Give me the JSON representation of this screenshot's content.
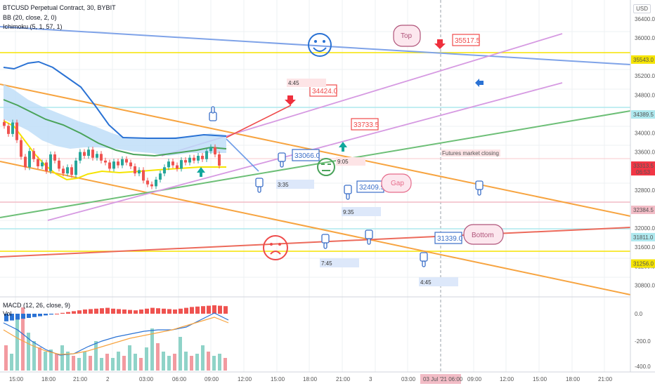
{
  "legend": {
    "symbol": "BTCUSD Perpetual Contract, 30, BYBIT",
    "bb": "BB (20, close, 2, 0)",
    "ichimoku": "Ichimoku (5, 1, 57, 1)",
    "macd": "MACD (12, 26, close, 9)",
    "vol": "Vol"
  },
  "currency": "USD",
  "price_axis": {
    "ticks": [
      "36400.0",
      "36000.0",
      "35200.0",
      "34800.0",
      "34400.0",
      "34000.0",
      "33600.0",
      "33200.0",
      "32800.0",
      "32400.0",
      "32000.0",
      "31600.0",
      "31200.0",
      "30800.0"
    ],
    "marked": [
      {
        "label": "35543.0",
        "color": "#f5e400",
        "text_color": "#333"
      },
      {
        "label": "34389.5",
        "color": "#aee8ee",
        "text_color": "#333"
      },
      {
        "label": "33313.5",
        "color": "#f23645",
        "text_color": "#fff",
        "sub": "06:53"
      },
      {
        "label": "32384.5",
        "color": "#f2bcc6",
        "text_color": "#333"
      },
      {
        "label": "31811.0",
        "color": "#aee8ee",
        "text_color": "#333"
      },
      {
        "label": "31256.0",
        "color": "#f5e400",
        "text_color": "#333"
      }
    ]
  },
  "macd_axis": {
    "ticks": [
      "0.0",
      "-200.0",
      "-400.0"
    ]
  },
  "time_axis": {
    "ticks": [
      "15:00",
      "18:00",
      "21:00",
      "2",
      "03:00",
      "06:00",
      "09:00",
      "12:00",
      "15:00",
      "18:00",
      "21:00",
      "3",
      "03:00",
      "09:00",
      "12:00",
      "15:00",
      "18:00",
      "21:00"
    ],
    "highlight": "03 Jul '21  06:00"
  },
  "annotations": {
    "top": "Top",
    "gap": "Gap",
    "bottom": "Bottom",
    "futures": "Futures market closing",
    "price_35517": "35517.5",
    "price_34424": "34424.0",
    "price_33733": "33733.5",
    "price_33066": "33066.0",
    "price_32409": "32409.5",
    "price_31339": "31339.0",
    "time_445a": "4:45",
    "time_905": "9:05",
    "time_335": "3:35",
    "time_935": "9:35",
    "time_745": "7:45",
    "time_445b": "4:45"
  },
  "chart_data": {
    "type": "candlestick",
    "symbol": "BTCUSD Perpetual Contract",
    "interval": "30",
    "exchange": "BYBIT",
    "last_price": 33313.5,
    "countdown": "06:53",
    "y_range": [
      30600,
      36500
    ],
    "price_levels": [
      35543.0,
      34389.5,
      32384.5,
      31811.0,
      31256.0
    ],
    "ohlc_close": [
      34150,
      33980,
      34220,
      33850,
      33500,
      33280,
      33620,
      33450,
      33300,
      33380,
      33200,
      33550,
      33420,
      33250,
      33150,
      33280,
      33120,
      33420,
      33600,
      33520,
      33650,
      33480,
      33560,
      33420,
      33380,
      33250,
      33400,
      33320,
      33450,
      33380,
      33300,
      33150,
      33220,
      33000,
      32920,
      32880,
      33020,
      33150,
      33280,
      33400,
      33320,
      33250,
      33430,
      33380,
      33480,
      33420,
      33520,
      33450,
      33620,
      33700,
      33550,
      33313.5
    ],
    "macd_histogram": [
      -90,
      -80,
      -70,
      -60,
      -50,
      -40,
      -30,
      -20,
      -10,
      0,
      10,
      20,
      30,
      40,
      50,
      55,
      60,
      65,
      70,
      60,
      55,
      50,
      45,
      40,
      50,
      60,
      70,
      65,
      60,
      55,
      50,
      60,
      70,
      80,
      85,
      90,
      95,
      100,
      95,
      90
    ],
    "volume": [
      120,
      80,
      260,
      300,
      180,
      140,
      110,
      90,
      100,
      80,
      120,
      90,
      70,
      60,
      90,
      70,
      140,
      60,
      80,
      60,
      90,
      70,
      120,
      80,
      60,
      110,
      200,
      130,
      90,
      70,
      80,
      160,
      90,
      70,
      80,
      120,
      90,
      70,
      80,
      60
    ]
  }
}
